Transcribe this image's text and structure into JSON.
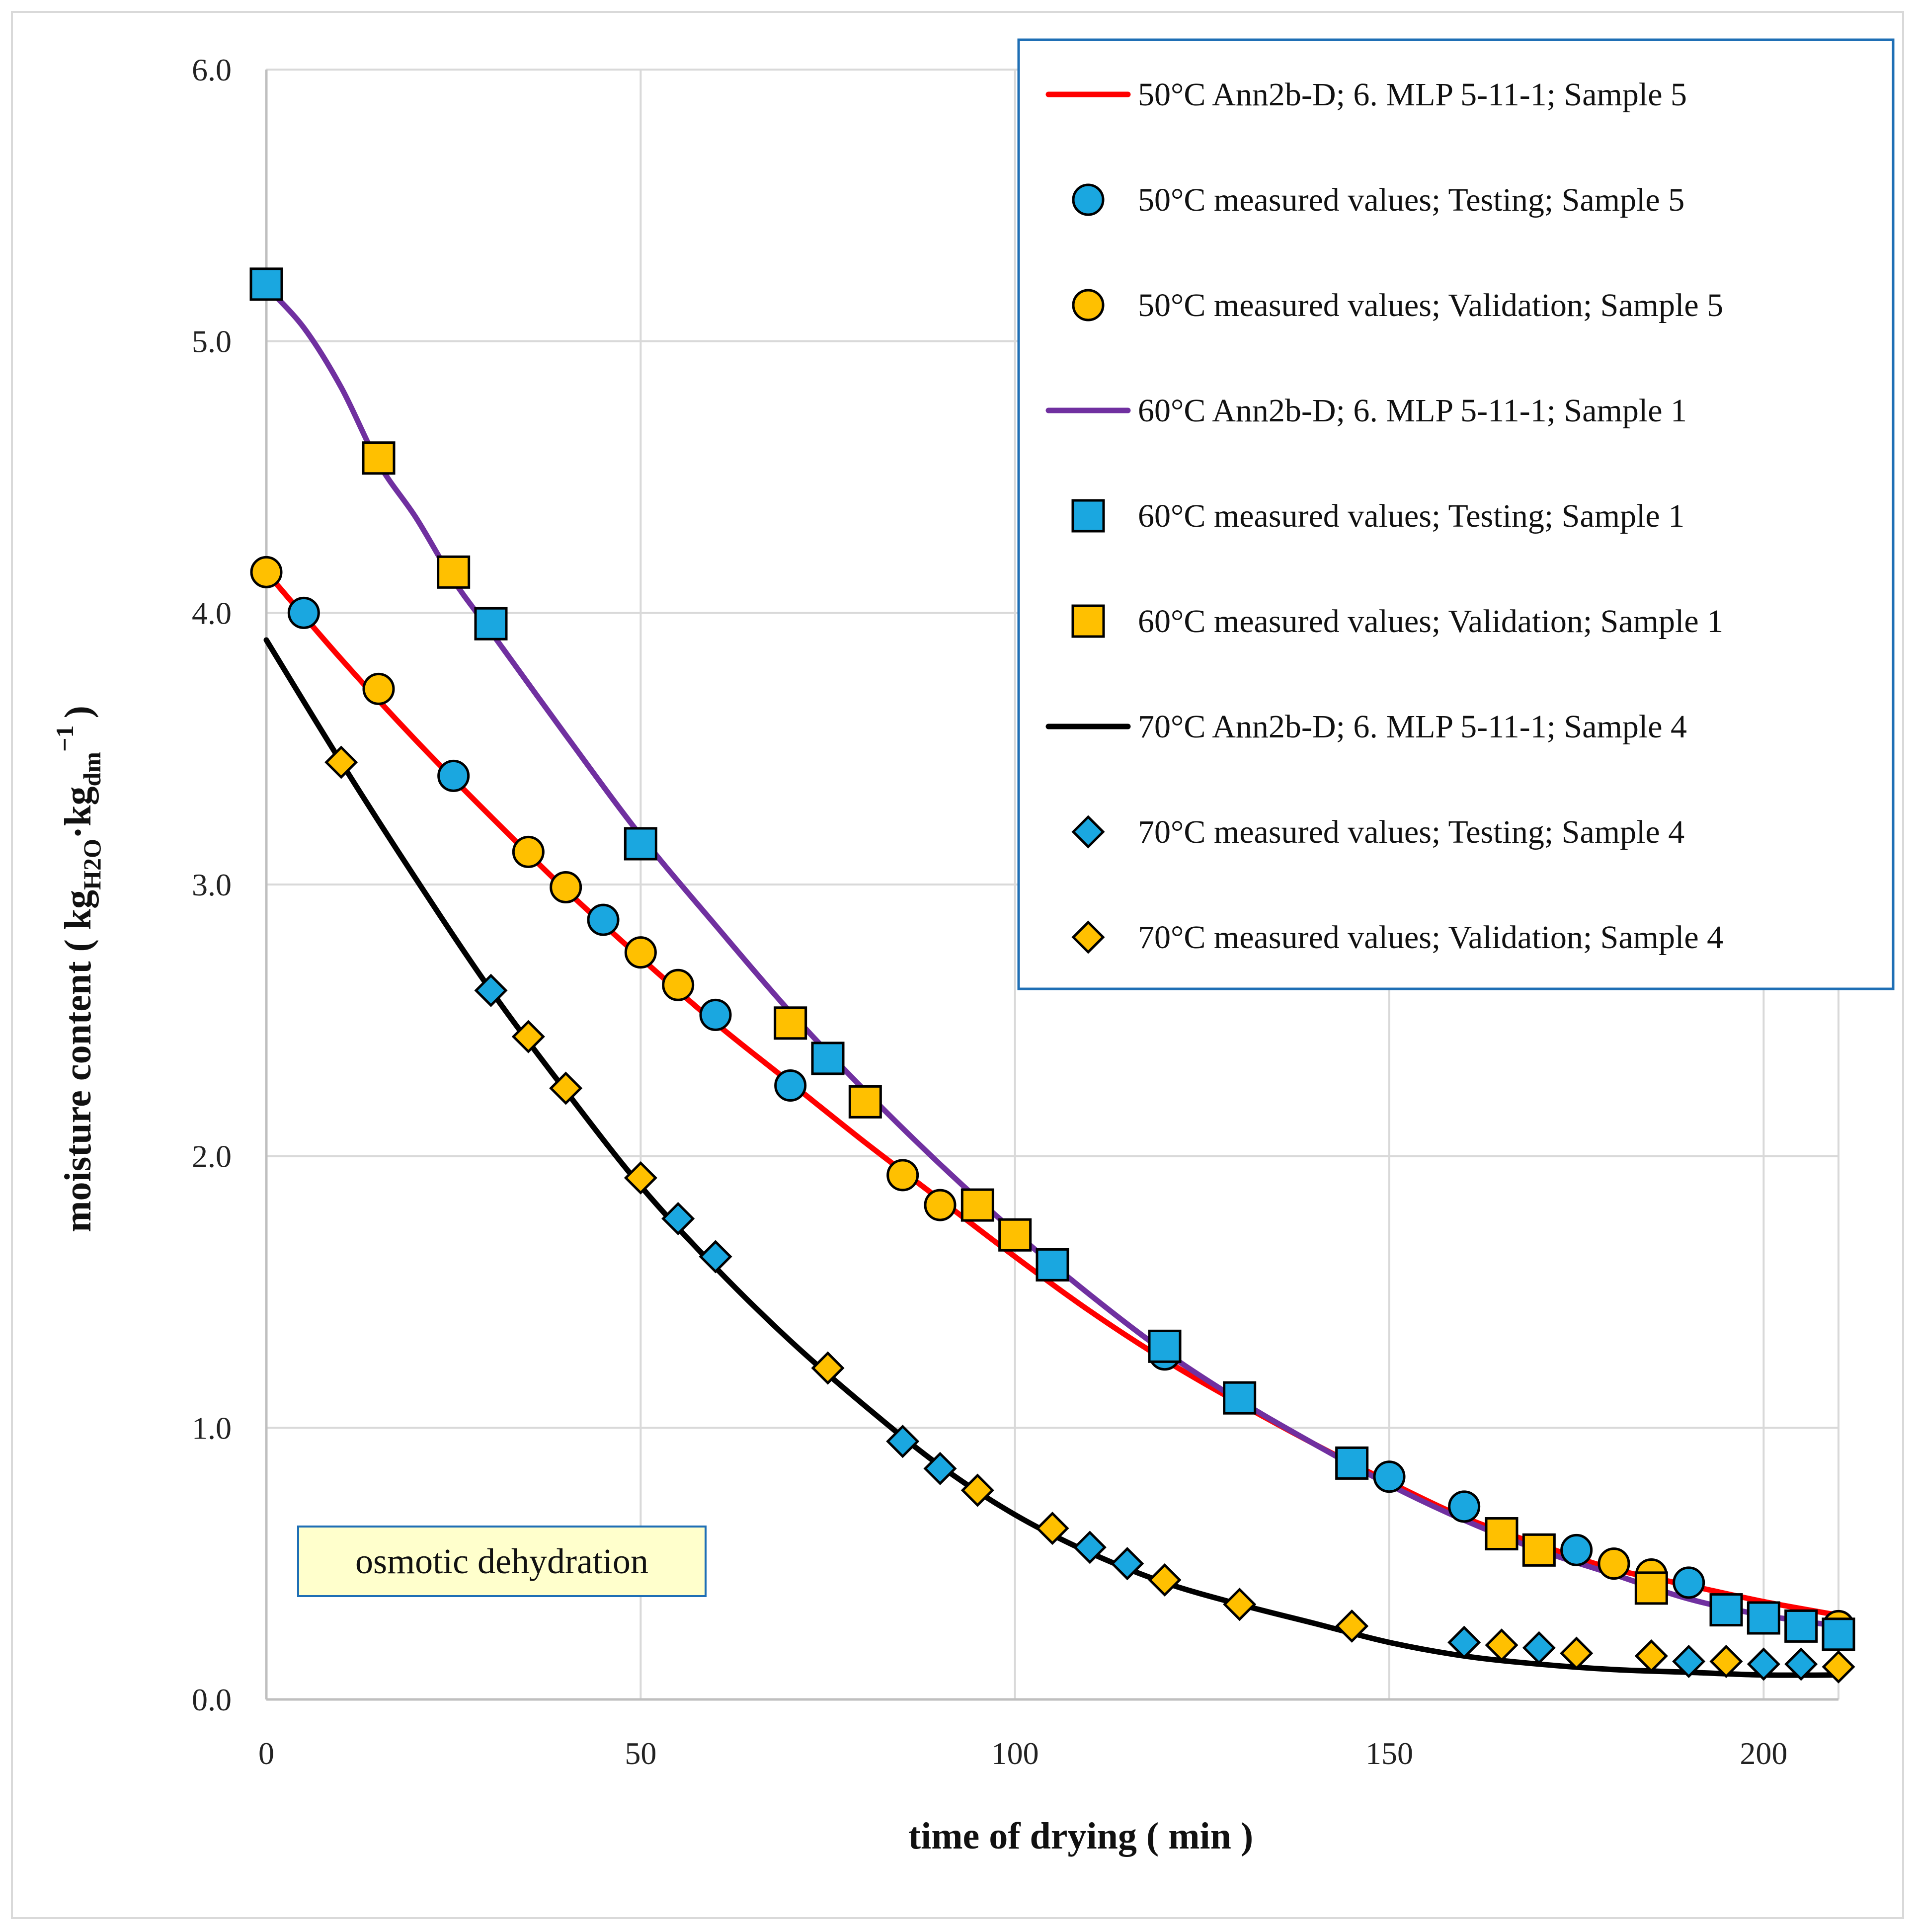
{
  "chart_data": {
    "type": "line",
    "title": "",
    "xlabel": "time of drying ( min )",
    "ylabel_parts": [
      "moisture content ( kg",
      "H2O",
      "·kg",
      "dm",
      "−1",
      ")"
    ],
    "xlim": [
      0,
      210
    ],
    "ylim": [
      0,
      6
    ],
    "xticks": [
      0,
      50,
      100,
      150,
      200
    ],
    "yticks": [
      0.0,
      1.0,
      2.0,
      3.0,
      4.0,
      5.0,
      6.0
    ],
    "ytick_labels": [
      "0.0",
      "1.0",
      "2.0",
      "3.0",
      "4.0",
      "5.0",
      "6.0"
    ],
    "grid": true,
    "legend_position": "top-right",
    "annotation": "osmotic dehydration",
    "series": [
      {
        "name": "50°C  Ann2b-D; 6. MLP 5-11-1; Sample 5",
        "kind": "line",
        "color": "#ff0000",
        "x": [
          0,
          10,
          20,
          30,
          40,
          50,
          60,
          70,
          80,
          90,
          100,
          110,
          120,
          130,
          140,
          150,
          160,
          170,
          180,
          190,
          200,
          210
        ],
        "y": [
          4.15,
          3.83,
          3.53,
          3.25,
          2.98,
          2.73,
          2.49,
          2.27,
          2.05,
          1.84,
          1.63,
          1.43,
          1.25,
          1.09,
          0.94,
          0.8,
          0.67,
          0.57,
          0.48,
          0.42,
          0.36,
          0.31
        ]
      },
      {
        "name": "50°C measured values; Testing; Sample 5",
        "kind": "marker",
        "marker": "circle",
        "color": "#1aa7e0",
        "x": [
          5,
          25,
          45,
          60,
          70,
          120,
          150,
          160,
          175,
          190
        ],
        "y": [
          4.0,
          3.4,
          2.87,
          2.52,
          2.26,
          1.27,
          0.82,
          0.71,
          0.55,
          0.43
        ]
      },
      {
        "name": "50°C measured values; Validation; Sample 5",
        "kind": "marker",
        "marker": "circle",
        "color": "#ffc000",
        "x": [
          0,
          15,
          35,
          40,
          50,
          55,
          85,
          90,
          180,
          185,
          210
        ],
        "y": [
          4.15,
          3.72,
          3.12,
          2.99,
          2.75,
          2.63,
          1.93,
          1.82,
          0.5,
          0.46,
          0.27
        ]
      },
      {
        "name": "60°C  Ann2b-D; 6. MLP 5-11-1; Sample 1",
        "kind": "line",
        "color": "#7030a0",
        "x": [
          0,
          5,
          10,
          15,
          20,
          25,
          30,
          40,
          50,
          60,
          70,
          80,
          90,
          100,
          110,
          120,
          130,
          140,
          150,
          160,
          170,
          180,
          190,
          200,
          210
        ],
        "y": [
          5.2,
          5.05,
          4.83,
          4.55,
          4.35,
          4.12,
          3.93,
          3.55,
          3.18,
          2.85,
          2.53,
          2.24,
          1.97,
          1.72,
          1.49,
          1.28,
          1.1,
          0.94,
          0.79,
          0.66,
          0.55,
          0.46,
          0.37,
          0.31,
          0.27
        ]
      },
      {
        "name": "60°C measured values; Testing; Sample 1",
        "kind": "marker",
        "marker": "square",
        "color": "#1aa7e0",
        "x": [
          0,
          30,
          50,
          75,
          105,
          120,
          130,
          145,
          195,
          200,
          205,
          210
        ],
        "y": [
          5.21,
          3.96,
          3.15,
          2.36,
          1.6,
          1.3,
          1.11,
          0.87,
          0.33,
          0.3,
          0.27,
          0.24
        ]
      },
      {
        "name": "60°C measured values; Validation; Sample 1",
        "kind": "marker",
        "marker": "square",
        "color": "#ffc000",
        "x": [
          15,
          25,
          70,
          80,
          95,
          100,
          165,
          170,
          185
        ],
        "y": [
          4.57,
          4.15,
          2.49,
          2.2,
          1.82,
          1.71,
          0.61,
          0.55,
          0.41
        ]
      },
      {
        "name": "70°C  Ann2b-D; 6. MLP 5-11-1; Sample 4",
        "kind": "line",
        "color": "#000000",
        "x": [
          0,
          10,
          20,
          30,
          40,
          50,
          60,
          70,
          80,
          90,
          100,
          110,
          120,
          130,
          140,
          150,
          160,
          170,
          180,
          190,
          200,
          210
        ],
        "y": [
          3.9,
          3.45,
          3.02,
          2.61,
          2.24,
          1.89,
          1.59,
          1.32,
          1.08,
          0.86,
          0.68,
          0.54,
          0.43,
          0.35,
          0.28,
          0.21,
          0.16,
          0.13,
          0.11,
          0.1,
          0.09,
          0.09
        ]
      },
      {
        "name": "70°C measured values; Testing; Sample 4",
        "kind": "marker",
        "marker": "diamond",
        "color": "#1aa7e0",
        "x": [
          30,
          55,
          60,
          85,
          90,
          110,
          115,
          160,
          170,
          190,
          200,
          205
        ],
        "y": [
          2.61,
          1.77,
          1.63,
          0.95,
          0.85,
          0.56,
          0.5,
          0.21,
          0.19,
          0.14,
          0.13,
          0.13
        ]
      },
      {
        "name": "70°C measured values; Validation; Sample 4",
        "kind": "marker",
        "marker": "diamond",
        "color": "#ffc000",
        "x": [
          10,
          35,
          40,
          50,
          75,
          95,
          105,
          120,
          130,
          145,
          165,
          175,
          185,
          195,
          210
        ],
        "y": [
          3.45,
          2.44,
          2.25,
          1.92,
          1.22,
          0.77,
          0.63,
          0.44,
          0.35,
          0.27,
          0.2,
          0.17,
          0.16,
          0.14,
          0.12
        ]
      }
    ]
  }
}
